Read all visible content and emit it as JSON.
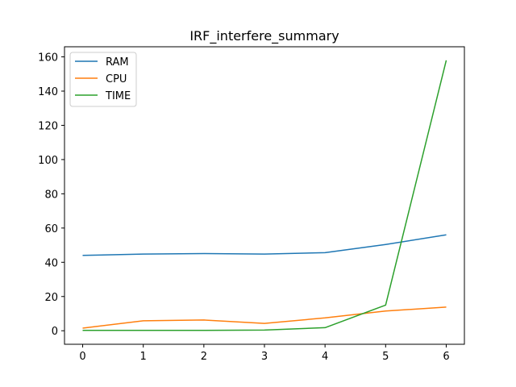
{
  "chart_data": {
    "type": "line",
    "title": "IRF_interfere_summary",
    "xlabel": "",
    "ylabel": "",
    "x": [
      0,
      1,
      2,
      3,
      4,
      5,
      6
    ],
    "xlim": [
      -0.3,
      6.3
    ],
    "ylim": [
      -7.9,
      165.9
    ],
    "xticks": [
      0,
      1,
      2,
      3,
      4,
      5,
      6
    ],
    "yticks": [
      0,
      20,
      40,
      60,
      80,
      100,
      120,
      140,
      160
    ],
    "grid": false,
    "legend_position": "upper left",
    "series": [
      {
        "name": "RAM",
        "color": "#1f77b4",
        "values": [
          44.0,
          44.8,
          45.1,
          44.8,
          45.6,
          50.4,
          56.0
        ]
      },
      {
        "name": "CPU",
        "color": "#ff7f0e",
        "values": [
          1.5,
          5.8,
          6.3,
          4.3,
          7.5,
          11.5,
          13.8
        ]
      },
      {
        "name": "TIME",
        "color": "#2ca02c",
        "values": [
          0.2,
          0.2,
          0.2,
          0.4,
          1.8,
          15.0,
          158.0
        ]
      }
    ]
  }
}
